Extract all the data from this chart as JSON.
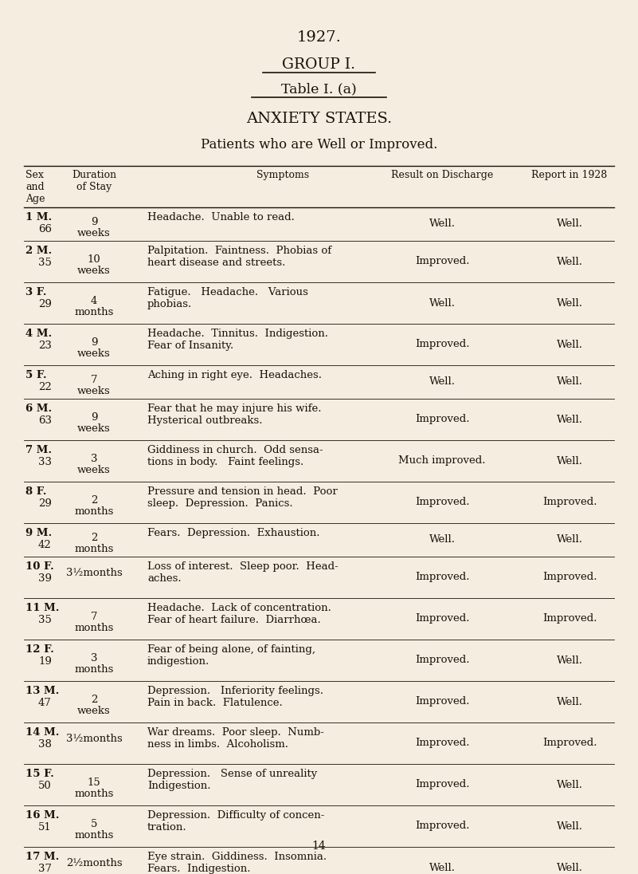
{
  "bg_color": "#f5ede0",
  "text_color": "#1a1208",
  "title1": "1927.",
  "title2": "GROUP I.",
  "title3": "Table I. (a)",
  "title4": "ANXIETY STATES.",
  "title5": "Patients who are Well or Improved.",
  "rows": [
    {
      "num": "1",
      "sex": "M.",
      "age": "66",
      "duration": "9\nweeks",
      "symptoms": "Headache.  Unable to read.",
      "result": "Well.",
      "report": "Well."
    },
    {
      "num": "2",
      "sex": "M.",
      "age": "35",
      "duration": "10\nweeks",
      "symptoms": "Palpitation.  Faintness.  Phobias of\nheart disease and streets.",
      "result": "Improved.",
      "report": "Well."
    },
    {
      "num": "3",
      "sex": "F.",
      "age": "29",
      "duration": "4\nmonths",
      "symptoms": "Fatigue.   Headache.   Various\nphobias.",
      "result": "Well.",
      "report": "Well."
    },
    {
      "num": "4",
      "sex": "M.",
      "age": "23",
      "duration": "9\nweeks",
      "symptoms": "Headache.  Tinnitus.  Indigestion.\nFear of Insanity.",
      "result": "Improved.",
      "report": "Well."
    },
    {
      "num": "5",
      "sex": "F.",
      "age": "22",
      "duration": "7\nweeks",
      "symptoms": "Aching in right eye.  Headaches.",
      "result": "Well.",
      "report": "Well."
    },
    {
      "num": "6",
      "sex": "M.",
      "age": "63",
      "duration": "9\nweeks",
      "symptoms": "Fear that he may injure his wife.\nHysterical outbreaks.",
      "result": "Improved.",
      "report": "Well."
    },
    {
      "num": "7",
      "sex": "M.",
      "age": "33",
      "duration": "3\nweeks",
      "symptoms": "Giddiness in church.  Odd sensa-\ntions in body.   Faint feelings.",
      "result": "Much improved.",
      "report": "Well."
    },
    {
      "num": "8",
      "sex": "F.",
      "age": "29",
      "duration": "2\nmonths",
      "symptoms": "Pressure and tension in head.  Poor\nsleep.  Depression.  Panics.",
      "result": "Improved.",
      "report": "Improved."
    },
    {
      "num": "9",
      "sex": "M.",
      "age": "42",
      "duration": "2\nmonths",
      "symptoms": "Fears.  Depression.  Exhaustion.",
      "result": "Well.",
      "report": "Well."
    },
    {
      "num": "10",
      "sex": "F.",
      "age": "39",
      "duration": "3½months",
      "symptoms": "Loss of interest.  Sleep poor.  Head-\naches.",
      "result": "Improved.",
      "report": "Improved."
    },
    {
      "num": "11",
      "sex": "M.",
      "age": "35",
      "duration": "7\nmonths",
      "symptoms": "Headache.  Lack of concentration.\nFear of heart failure.  Diarrhœa.",
      "result": "Improved.",
      "report": "Improved."
    },
    {
      "num": "12",
      "sex": "F.",
      "age": "19",
      "duration": "3\nmonths",
      "symptoms": "Fear of being alone, of fainting,\nindigestion.",
      "result": "Improved.",
      "report": "Well."
    },
    {
      "num": "13",
      "sex": "M.",
      "age": "47",
      "duration": "2\nweeks",
      "symptoms": "Depression.   Inferiority feelings.\nPain in back.  Flatulence.",
      "result": "Improved.",
      "report": "Well."
    },
    {
      "num": "14",
      "sex": "M.",
      "age": "38",
      "duration": "3½months",
      "symptoms": "War dreams.  Poor sleep.  Numb-\nness in limbs.  Alcoholism.",
      "result": "Improved.",
      "report": "Improved."
    },
    {
      "num": "15",
      "sex": "F.",
      "age": "50",
      "duration": "15\nmonths",
      "symptoms": "Depression.   Sense of unreality\nIndigestion.",
      "result": "Improved.",
      "report": "Well."
    },
    {
      "num": "16",
      "sex": "M.",
      "age": "51",
      "duration": "5\nmonths",
      "symptoms": "Depression.  Difficulty of concen-\ntration.",
      "result": "Improved.",
      "report": "Well."
    },
    {
      "num": "17",
      "sex": "M.",
      "age": "37",
      "duration": "2½months",
      "symptoms": "Eye strain.  Giddiness.  Insomnia.\nFears.  Indigestion.",
      "result": "Well.",
      "report": "Well."
    }
  ],
  "footer": "14"
}
